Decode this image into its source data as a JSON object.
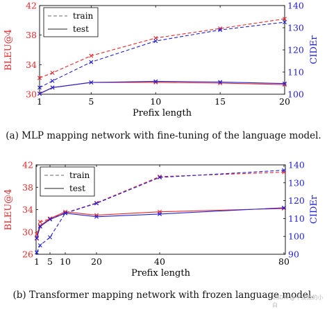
{
  "colors": {
    "red": "#e8282b",
    "blue": "#2020d8",
    "black": "#222222",
    "gray": "#666666"
  },
  "legend": {
    "train": "train",
    "test": "test"
  },
  "watermark": "CSDN @平淡微的小白",
  "chart_data": [
    {
      "type": "line",
      "caption": "(a) MLP mapping network with fine-tuning of the language model.",
      "xlabel": "Prefix length",
      "ylabel_left": "BLEU@4",
      "ylabel_right": "CIDEr",
      "x_ticks": [
        1,
        5,
        10,
        15,
        20
      ],
      "y_left_ticks": [
        30,
        34,
        38,
        42
      ],
      "y_right_ticks": [
        100,
        110,
        120,
        130,
        140
      ],
      "xlim": [
        1,
        20
      ],
      "ylim_left": [
        30,
        42
      ],
      "ylim_right": [
        100,
        140
      ],
      "legend_position": "top-left",
      "grid": false,
      "series": [
        {
          "name": "train",
          "metric": "BLEU@4",
          "axis": "left",
          "style": "dashed",
          "color": "red",
          "x": [
            1,
            2,
            5,
            10,
            15,
            20
          ],
          "y": [
            32.2,
            32.9,
            35.2,
            37.6,
            38.9,
            40.2
          ]
        },
        {
          "name": "train",
          "metric": "CIDEr",
          "axis": "right",
          "style": "dashed",
          "color": "blue",
          "x": [
            1,
            2,
            5,
            10,
            15,
            20
          ],
          "y": [
            103.0,
            106.0,
            114.5,
            124.0,
            129.0,
            132.5
          ]
        },
        {
          "name": "test",
          "metric": "BLEU@4",
          "axis": "left",
          "style": "solid",
          "color": "red",
          "x": [
            1,
            2,
            5,
            10,
            15,
            20
          ],
          "y": [
            30.1,
            30.9,
            31.6,
            31.6,
            31.5,
            31.3
          ]
        },
        {
          "name": "test",
          "metric": "CIDEr",
          "axis": "right",
          "style": "solid",
          "color": "blue",
          "x": [
            1,
            2,
            5,
            10,
            15,
            20
          ],
          "y": [
            100.2,
            103.0,
            105.3,
            105.8,
            105.5,
            104.8
          ]
        }
      ]
    },
    {
      "type": "line",
      "caption": "(b) Transformer mapping network with frozen language model.",
      "xlabel": "Prefix length",
      "ylabel_left": "BLEU@4",
      "ylabel_right": "CIDEr",
      "x_ticks": [
        1,
        5,
        10,
        20,
        40,
        80
      ],
      "x_scale": "custom-compressed",
      "y_left_ticks": [
        26,
        30,
        34,
        38,
        42
      ],
      "y_right_ticks": [
        90,
        100,
        110,
        120,
        130,
        140
      ],
      "xlim": [
        1,
        80
      ],
      "ylim_left": [
        26,
        42
      ],
      "ylim_right": [
        90,
        140
      ],
      "legend_position": "top-left",
      "grid": false,
      "series": [
        {
          "name": "train",
          "metric": "BLEU@4",
          "axis": "left",
          "style": "dashed",
          "color": "red",
          "x": [
            1,
            2,
            5,
            10,
            20,
            40,
            80
          ],
          "y": [
            28.8,
            31.8,
            32.3,
            33.4,
            35.2,
            39.9,
            40.7
          ]
        },
        {
          "name": "train",
          "metric": "CIDEr",
          "axis": "right",
          "style": "dashed",
          "color": "blue",
          "x": [
            1,
            2,
            5,
            10,
            20,
            40,
            80
          ],
          "y": [
            91.0,
            95.0,
            99.5,
            113.0,
            118.5,
            133.0,
            137.0
          ]
        },
        {
          "name": "test",
          "metric": "BLEU@4",
          "axis": "left",
          "style": "solid",
          "color": "red",
          "x": [
            1,
            2,
            5,
            10,
            20,
            40,
            80
          ],
          "y": [
            29.6,
            31.1,
            32.4,
            33.6,
            33.0,
            33.6,
            34.2
          ]
        },
        {
          "name": "test",
          "metric": "CIDEr",
          "axis": "right",
          "style": "solid",
          "color": "blue",
          "x": [
            1,
            2,
            5,
            10,
            20,
            40,
            80
          ],
          "y": [
            99.0,
            105.5,
            109.5,
            113.0,
            111.0,
            112.5,
            116.0
          ]
        }
      ]
    }
  ]
}
